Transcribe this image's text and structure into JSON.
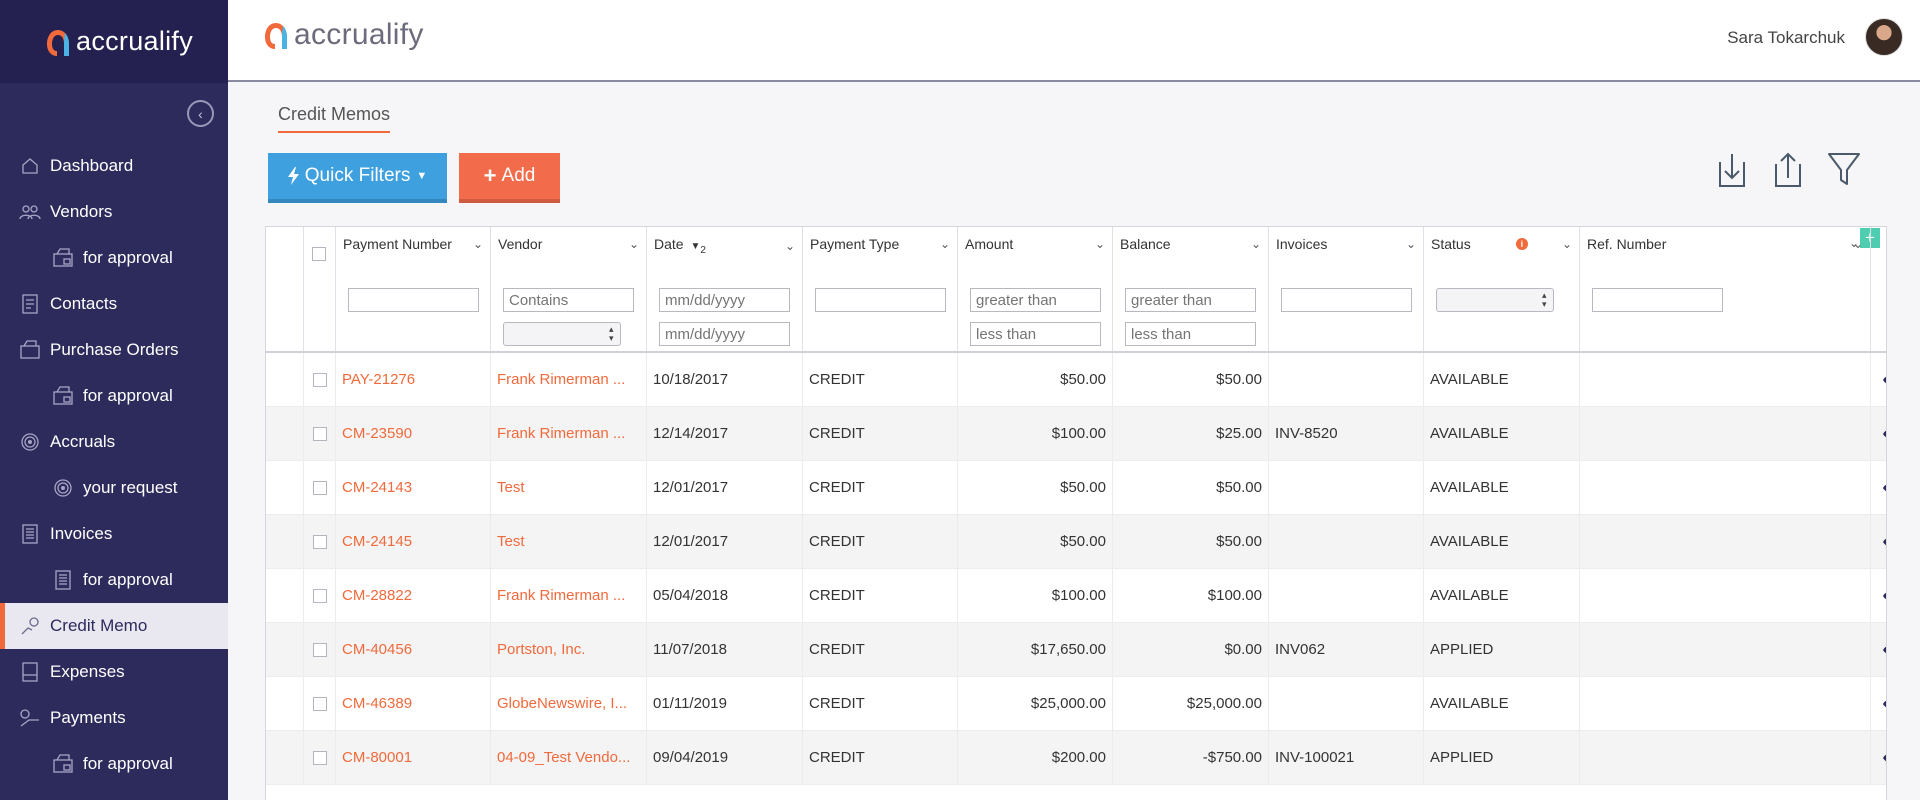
{
  "brand": {
    "name": "accrualify"
  },
  "header": {
    "user_name": "Sara Tokarchuk"
  },
  "sidebar": {
    "items": [
      {
        "label": "Dashboard",
        "icon": "home-icon",
        "sub": false,
        "active": false
      },
      {
        "label": "Vendors",
        "icon": "people-icon",
        "sub": false,
        "active": false
      },
      {
        "label": "for approval",
        "icon": "stamp-icon",
        "sub": true,
        "active": false
      },
      {
        "label": "Contacts",
        "icon": "contacts-icon",
        "sub": false,
        "active": false
      },
      {
        "label": "Purchase Orders",
        "icon": "cart-icon",
        "sub": false,
        "active": false
      },
      {
        "label": "for approval",
        "icon": "stamp-icon",
        "sub": true,
        "active": false
      },
      {
        "label": "Accruals",
        "icon": "target-icon",
        "sub": false,
        "active": false
      },
      {
        "label": "your request",
        "icon": "target-icon",
        "sub": true,
        "active": false
      },
      {
        "label": "Invoices",
        "icon": "invoice-icon",
        "sub": false,
        "active": false
      },
      {
        "label": "for approval",
        "icon": "invoice-icon",
        "sub": true,
        "active": false
      },
      {
        "label": "Credit Memo",
        "icon": "credit-icon",
        "sub": false,
        "active": true
      },
      {
        "label": "Expenses",
        "icon": "expense-icon",
        "sub": false,
        "active": false
      },
      {
        "label": "Payments",
        "icon": "payment-icon",
        "sub": false,
        "active": false
      },
      {
        "label": "for approval",
        "icon": "stamp-icon",
        "sub": true,
        "active": false
      }
    ]
  },
  "page": {
    "breadcrumb": "Credit Memos",
    "quick_filters_label": "Quick Filters",
    "add_label": "Add"
  },
  "table": {
    "columns": [
      {
        "label": "Payment Number"
      },
      {
        "label": "Vendor"
      },
      {
        "label": "Date",
        "sort": "2"
      },
      {
        "label": "Payment Type"
      },
      {
        "label": "Amount"
      },
      {
        "label": "Balance"
      },
      {
        "label": "Invoices"
      },
      {
        "label": "Status"
      },
      {
        "label": "Ref. Number"
      }
    ],
    "filters": {
      "vendor": "Contains",
      "date_from": "mm/dd/yyyy",
      "date_to": "mm/dd/yyyy",
      "amount_min": "greater than",
      "amount_max": "less than",
      "balance_min": "greater than",
      "balance_max": "less than"
    },
    "rows": [
      {
        "number": "PAY-21276",
        "vendor": "Frank Rimerman ...",
        "date": "10/18/2017",
        "type": "CREDIT",
        "amount": "$50.00",
        "balance": "$50.00",
        "invoices": "",
        "status": "AVAILABLE",
        "ref": "",
        "deletable": true
      },
      {
        "number": "CM-23590",
        "vendor": "Frank Rimerman ...",
        "date": "12/14/2017",
        "type": "CREDIT",
        "amount": "$100.00",
        "balance": "$25.00",
        "invoices": "INV-8520",
        "status": "AVAILABLE",
        "ref": "",
        "deletable": true
      },
      {
        "number": "CM-24143",
        "vendor": "Test",
        "date": "12/01/2017",
        "type": "CREDIT",
        "amount": "$50.00",
        "balance": "$50.00",
        "invoices": "",
        "status": "AVAILABLE",
        "ref": "",
        "deletable": true
      },
      {
        "number": "CM-24145",
        "vendor": "Test",
        "date": "12/01/2017",
        "type": "CREDIT",
        "amount": "$50.00",
        "balance": "$50.00",
        "invoices": "",
        "status": "AVAILABLE",
        "ref": "",
        "deletable": true
      },
      {
        "number": "CM-28822",
        "vendor": "Frank Rimerman ...",
        "date": "05/04/2018",
        "type": "CREDIT",
        "amount": "$100.00",
        "balance": "$100.00",
        "invoices": "",
        "status": "AVAILABLE",
        "ref": "",
        "deletable": true
      },
      {
        "number": "CM-40456",
        "vendor": "Portston, Inc.",
        "date": "11/07/2018",
        "type": "CREDIT",
        "amount": "$17,650.00",
        "balance": "$0.00",
        "invoices": "INV062",
        "status": "APPLIED",
        "ref": "",
        "deletable": false
      },
      {
        "number": "CM-46389",
        "vendor": "GlobeNewswire, I...",
        "date": "01/11/2019",
        "type": "CREDIT",
        "amount": "$25,000.00",
        "balance": "$25,000.00",
        "invoices": "",
        "status": "AVAILABLE",
        "ref": "",
        "deletable": true
      },
      {
        "number": "CM-80001",
        "vendor": "04-09_Test Vendo...",
        "date": "09/04/2019",
        "type": "CREDIT",
        "amount": "$200.00",
        "balance": "-$750.00",
        "invoices": "INV-100021",
        "status": "APPLIED",
        "ref": "",
        "deletable": false
      }
    ]
  }
}
